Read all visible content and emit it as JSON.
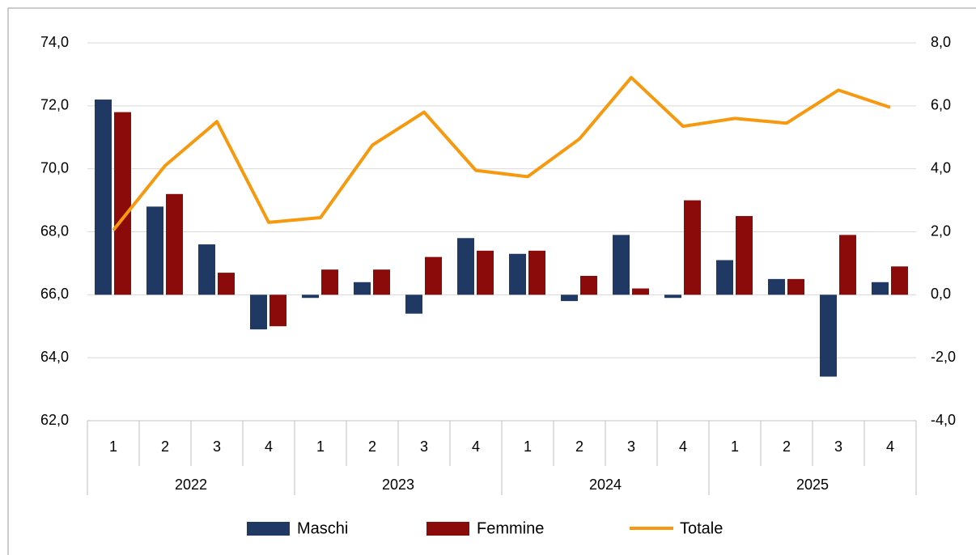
{
  "chart_data": {
    "type": "bar-line",
    "categories": [
      "1",
      "2",
      "3",
      "4",
      "1",
      "2",
      "3",
      "4",
      "1",
      "2",
      "3",
      "4",
      "1",
      "2",
      "3",
      "4"
    ],
    "groups": [
      "2022",
      "2023",
      "2024",
      "2025"
    ],
    "series": [
      {
        "name": "Maschi",
        "type": "bar",
        "axis": "y2",
        "color": "#1f3864",
        "values": [
          6.2,
          2.8,
          1.6,
          -1.1,
          -0.1,
          0.4,
          -0.6,
          1.8,
          1.3,
          -0.2,
          1.9,
          -0.1,
          1.1,
          0.5,
          -2.6,
          0.4
        ]
      },
      {
        "name": "Femmine",
        "type": "bar",
        "axis": "y2",
        "color": "#8b0a0a",
        "values": [
          5.8,
          3.2,
          0.7,
          -1.0,
          0.8,
          0.8,
          1.2,
          1.4,
          1.4,
          0.6,
          0.2,
          3.0,
          2.5,
          0.5,
          1.9,
          0.9
        ]
      },
      {
        "name": "Totale",
        "type": "line",
        "axis": "y",
        "color": "#f7990f",
        "values": [
          68.05,
          70.1,
          71.5,
          68.3,
          68.45,
          70.75,
          71.8,
          69.95,
          69.75,
          70.95,
          72.9,
          71.35,
          71.6,
          71.45,
          72.5,
          71.95
        ]
      }
    ],
    "ylim": [
      62,
      74
    ],
    "yticks": [
      {
        "value": 62,
        "label": "62,0"
      },
      {
        "value": 64,
        "label": "64,0"
      },
      {
        "value": 66,
        "label": "66,0"
      },
      {
        "value": 68,
        "label": "68,0"
      },
      {
        "value": 70,
        "label": "70,0"
      },
      {
        "value": 72,
        "label": "72,0"
      },
      {
        "value": 74,
        "label": "74,0"
      }
    ],
    "y2lim": [
      -4,
      8
    ],
    "y2ticks": [
      {
        "value": -4,
        "label": "-4,0"
      },
      {
        "value": -2,
        "label": "-2,0"
      },
      {
        "value": 0,
        "label": "0,0"
      },
      {
        "value": 2,
        "label": "2,0"
      },
      {
        "value": 4,
        "label": "4,0"
      },
      {
        "value": 6,
        "label": "6,0"
      },
      {
        "value": 8,
        "label": "8,0"
      }
    ],
    "grid": true,
    "legend": "bottom"
  }
}
